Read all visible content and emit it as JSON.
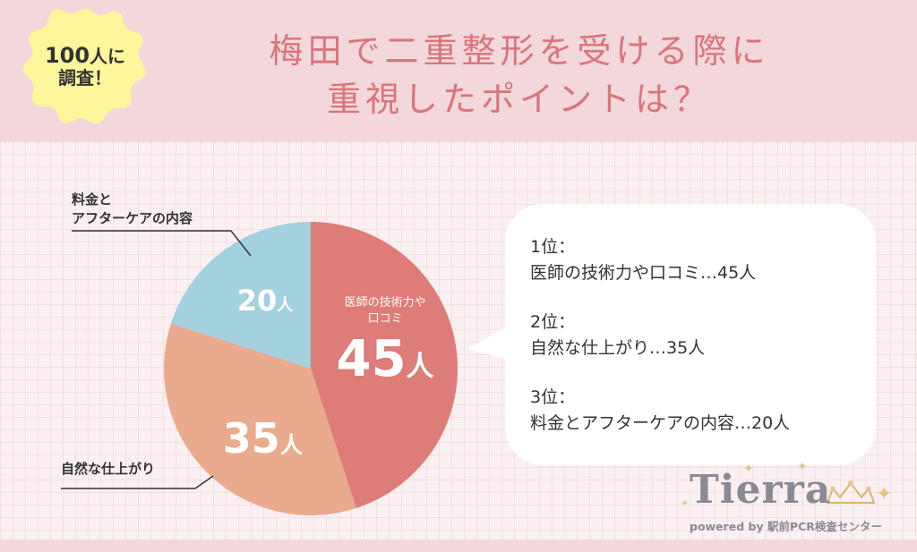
{
  "badge": {
    "count": "100",
    "count_suffix": "人に",
    "line2": "調査！"
  },
  "title": {
    "line1": "梅田で二重整形を受ける際に",
    "line2": "重視したポイントは？"
  },
  "chart_data": {
    "type": "pie",
    "slices": [
      {
        "label": "医師の技術力や口コミ",
        "value": 45,
        "value_label": "45人",
        "color": "#de7c78"
      },
      {
        "label": "自然な仕上がり",
        "value": 35,
        "value_label": "35人",
        "color": "#eaaa8e"
      },
      {
        "label": "料金とアフターケアの内容",
        "value": 20,
        "value_label": "20人",
        "color": "#a4d1de"
      }
    ],
    "inner_label_line1": "医師の技術力や",
    "inner_label_line2": "口コミ",
    "external_labels": {
      "cost_line1": "料金と",
      "cost_line2": "アフターケアの内容",
      "natural": "自然な仕上がり"
    }
  },
  "ranking": [
    {
      "rank": "1位：",
      "text": "医師の技術力や口コミ…45人"
    },
    {
      "rank": "2位：",
      "text": "自然な仕上がり…35人"
    },
    {
      "rank": "3位：",
      "text": "料金とアフターケアの内容…20人"
    }
  ],
  "logo": {
    "word": "Tierra",
    "sub": "powered by 駅前PCR検査センター"
  }
}
